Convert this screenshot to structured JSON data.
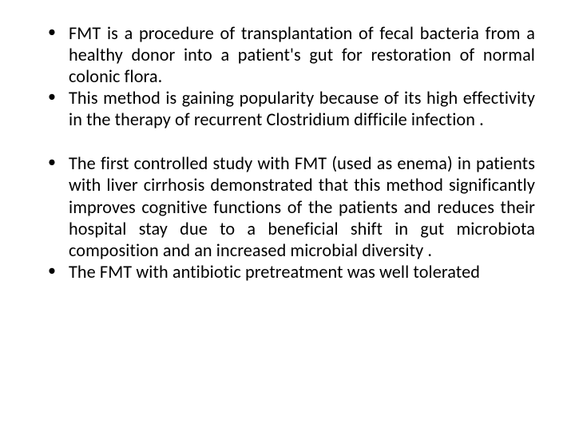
{
  "slide": {
    "background_color": "#ffffff",
    "text_color": "#000000",
    "font_family": "Calibri, Arial, sans-serif",
    "font_size_pt": 17,
    "bullets_group1": [
      "FMT is a procedure of transplantation of fecal bacteria from a healthy donor into a patient's gut for restoration of normal colonic flora.",
      "This method is gaining popularity because of its high effectivity in the therapy of recurrent Clostridium difficile infection ."
    ],
    "bullets_group2": [
      "The first controlled study with FMT (used as enema) in patients with liver cirrhosis demonstrated that this method significantly improves cognitive functions of the patients and reduces their hospital stay due to a beneficial shift in gut microbiota composition and an increased microbial diversity .",
      "The FMT with antibiotic pretreatment was well tolerated"
    ]
  }
}
